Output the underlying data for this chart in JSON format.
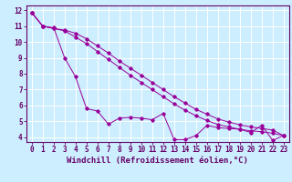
{
  "xlabel": "Windchill (Refroidissement éolien,°C)",
  "background_color": "#cceeff",
  "line_color": "#990099",
  "xlim": [
    -0.5,
    23.5
  ],
  "ylim": [
    3.7,
    12.3
  ],
  "yticks": [
    4,
    5,
    6,
    7,
    8,
    9,
    10,
    11,
    12
  ],
  "xticks": [
    0,
    1,
    2,
    3,
    4,
    5,
    6,
    7,
    8,
    9,
    10,
    11,
    12,
    13,
    14,
    15,
    16,
    17,
    18,
    19,
    20,
    21,
    22,
    23
  ],
  "series1_x": [
    0,
    1,
    2,
    3,
    4,
    5,
    6,
    7,
    8,
    9,
    10,
    11,
    12,
    13,
    14,
    15,
    16,
    17,
    18,
    19,
    20,
    21,
    22,
    23
  ],
  "series1_y": [
    11.85,
    11.0,
    10.9,
    9.0,
    7.8,
    5.8,
    5.65,
    4.82,
    5.2,
    5.25,
    5.2,
    5.1,
    5.5,
    3.85,
    3.85,
    4.1,
    4.75,
    4.6,
    4.55,
    4.5,
    4.3,
    4.75,
    3.8,
    4.1
  ],
  "series2_x": [
    0,
    1,
    2,
    3,
    4,
    5,
    6,
    7,
    8,
    9,
    10,
    11,
    12,
    13,
    14,
    15,
    16,
    17,
    18,
    19,
    20,
    21,
    22,
    23
  ],
  "series2_y": [
    11.85,
    11.0,
    10.85,
    10.7,
    10.3,
    9.9,
    9.4,
    8.9,
    8.4,
    7.9,
    7.45,
    7.0,
    6.55,
    6.1,
    5.7,
    5.35,
    5.05,
    4.8,
    4.65,
    4.5,
    4.4,
    4.35,
    4.25,
    4.1
  ],
  "series3_x": [
    0,
    1,
    2,
    3,
    4,
    5,
    6,
    7,
    8,
    9,
    10,
    11,
    12,
    13,
    14,
    15,
    16,
    17,
    18,
    19,
    20,
    21,
    22,
    23
  ],
  "series3_y": [
    11.85,
    11.0,
    10.85,
    10.75,
    10.55,
    10.2,
    9.75,
    9.3,
    8.8,
    8.35,
    7.9,
    7.45,
    7.0,
    6.55,
    6.15,
    5.75,
    5.45,
    5.15,
    4.95,
    4.78,
    4.65,
    4.55,
    4.45,
    4.1
  ],
  "tick_fontsize": 5.5,
  "label_fontsize": 6.5
}
